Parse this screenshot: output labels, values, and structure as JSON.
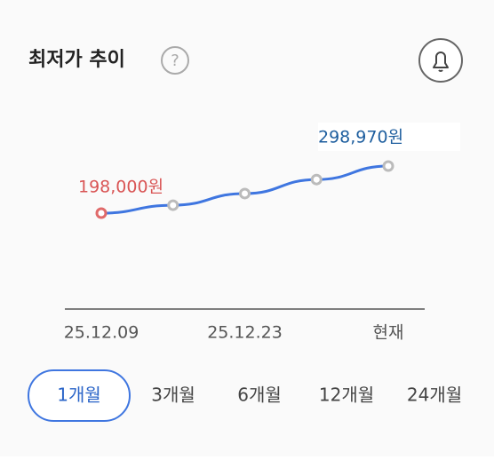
{
  "title": "최저가 추이",
  "help_icon": "?",
  "chart_data": {
    "type": "line",
    "categories": [
      "25.12.09",
      null,
      "25.12.23",
      null,
      "현재"
    ],
    "values": [
      198000,
      215000,
      240000,
      270000,
      298970
    ],
    "value_labels": [
      "198,000원",
      null,
      null,
      null,
      "298,970원"
    ],
    "color": "#3f76e0"
  },
  "periods": [
    "1개월",
    "3개월",
    "6개월",
    "12개월",
    "24개월"
  ]
}
